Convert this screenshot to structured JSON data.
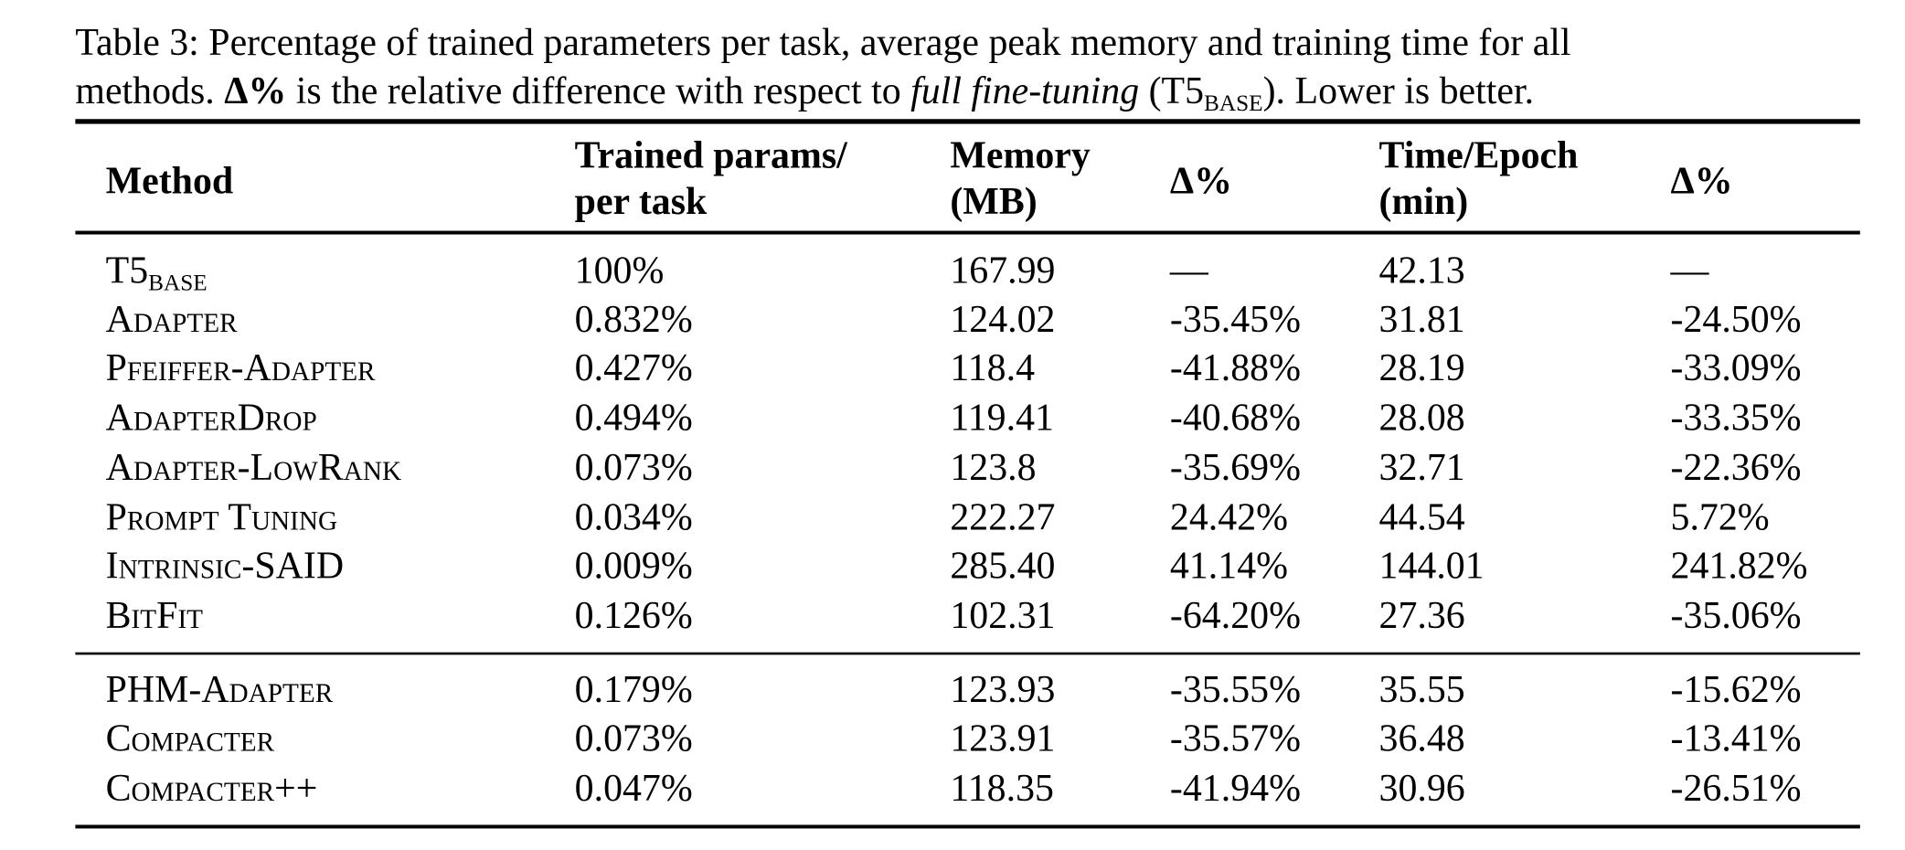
{
  "caption": {
    "line1": "Table 3: Percentage of trained parameters per task, average peak memory and training time for all",
    "line2_a": "methods. ",
    "delta": "Δ%",
    "line2_b": " is the relative difference with respect to ",
    "line2_italic": "full fine-tuning",
    "line2_c": " (T5",
    "line2_sub": "BASE",
    "line2_d": "). Lower is better."
  },
  "headers": {
    "method": "Method",
    "params_1": "Trained params/",
    "params_2": "per task",
    "memory_1": "Memory",
    "memory_2": "(MB)",
    "delta_mem": "Δ%",
    "time_1": "Time/Epoch",
    "time_2": "(min)",
    "delta_time": "Δ%"
  },
  "rows": [
    {
      "method": "T5",
      "sub": "BASE",
      "params": "100%",
      "memory": "167.99",
      "dmem": "—",
      "time": "42.13",
      "dtime": "—"
    },
    {
      "method": "Adapter",
      "params": "0.832%",
      "memory": "124.02",
      "dmem": "-35.45%",
      "time": "31.81",
      "dtime": "-24.50%"
    },
    {
      "method": "Pfeiffer-Adapter",
      "params": "0.427%",
      "memory": "118.4",
      "dmem": "-41.88%",
      "time": "28.19",
      "dtime": "-33.09%"
    },
    {
      "method": "AdapterDrop",
      "params": "0.494%",
      "memory": "119.41",
      "dmem": "-40.68%",
      "time": "28.08",
      "dtime": "-33.35%"
    },
    {
      "method": "Adapter-LowRank",
      "params": "0.073%",
      "memory": "123.8",
      "dmem": "-35.69%",
      "time": "32.71",
      "dtime": "-22.36%"
    },
    {
      "method": "Prompt Tuning",
      "params": "0.034%",
      "memory": "222.27",
      "dmem": "24.42%",
      "time": "44.54",
      "dtime": "5.72%"
    },
    {
      "method": "Intrinsic-SAID",
      "params": "0.009%",
      "memory": "285.40",
      "dmem": "41.14%",
      "time": "144.01",
      "dtime": "241.82%"
    },
    {
      "method": "BitFit",
      "params": "0.126%",
      "memory": "102.31",
      "dmem": "-64.20%",
      "time": "27.36",
      "dtime": "-35.06%"
    },
    {
      "method": "PHM-Adapter",
      "params": "0.179%",
      "memory": "123.93",
      "dmem": "-35.55%",
      "time": "35.55",
      "dtime": "-15.62%"
    },
    {
      "method": "Compacter",
      "params": "0.073%",
      "memory": "123.91",
      "dmem": "-35.57%",
      "time": "36.48",
      "dtime": "-13.41%"
    },
    {
      "method": "Compacter++",
      "params": "0.047%",
      "memory": "118.35",
      "dmem": "-41.94%",
      "time": "30.96",
      "dtime": "-26.51%"
    }
  ]
}
